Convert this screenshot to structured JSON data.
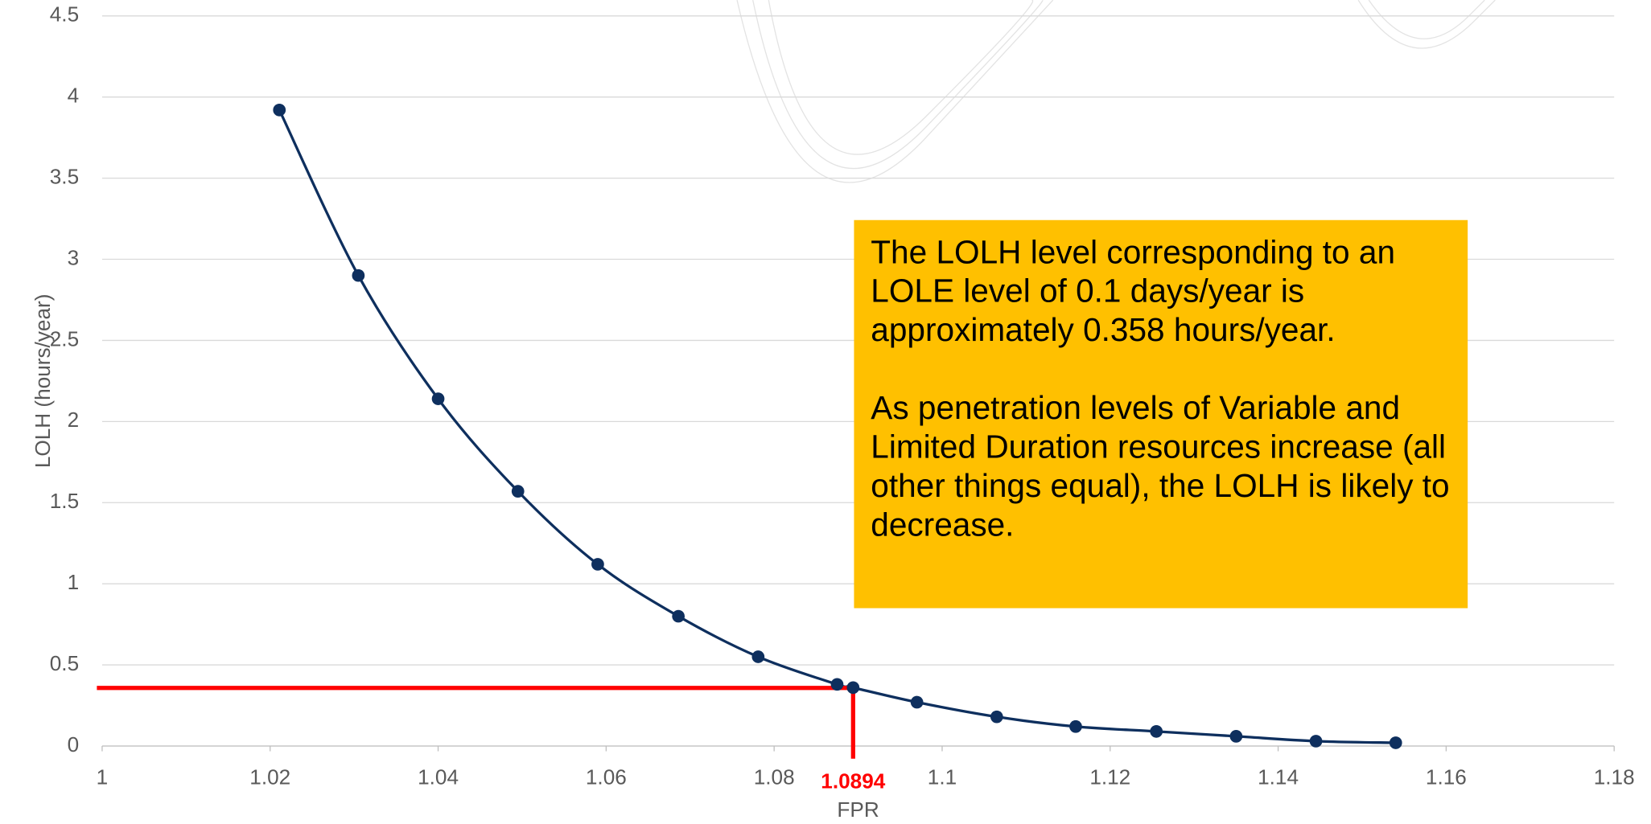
{
  "chart_data": {
    "type": "scatter",
    "x_label": "FPR",
    "y_label": "LOLH (hours/year)",
    "xlim": [
      1,
      1.18
    ],
    "xticks": [
      1,
      1.02,
      1.04,
      1.06,
      1.08,
      1.1,
      1.12,
      1.14,
      1.16,
      1.18
    ],
    "ylim": [
      0,
      4.5
    ],
    "yticks": [
      0,
      0.5,
      1,
      1.5,
      2,
      2.5,
      3,
      3.5,
      4,
      4.5
    ],
    "grid": true,
    "smooth": true,
    "color": "#0e2f5e",
    "x": [
      1.0211,
      1.0305,
      1.04,
      1.0495,
      1.059,
      1.0686,
      1.0781,
      1.0875,
      1.0894,
      1.097,
      1.1065,
      1.1159,
      1.1255,
      1.135,
      1.1445,
      1.154
    ],
    "values": [
      3.92,
      2.9,
      2.14,
      1.57,
      1.12,
      0.8,
      0.55,
      0.38,
      0.36,
      0.27,
      0.18,
      0.12,
      0.09,
      0.06,
      0.03,
      0.02
    ],
    "reference": {
      "x": 1.0894,
      "y": 0.358,
      "label": "1.0894",
      "color": "#ff0000"
    },
    "annotation": [
      "The LOLH level corresponding to an LOLE level of 0.1 days/year is approximately 0.358 hours/year.",
      "As penetration levels of Variable and Limited Duration resources increase (all other things equal), the LOLH is likely to decrease."
    ]
  }
}
